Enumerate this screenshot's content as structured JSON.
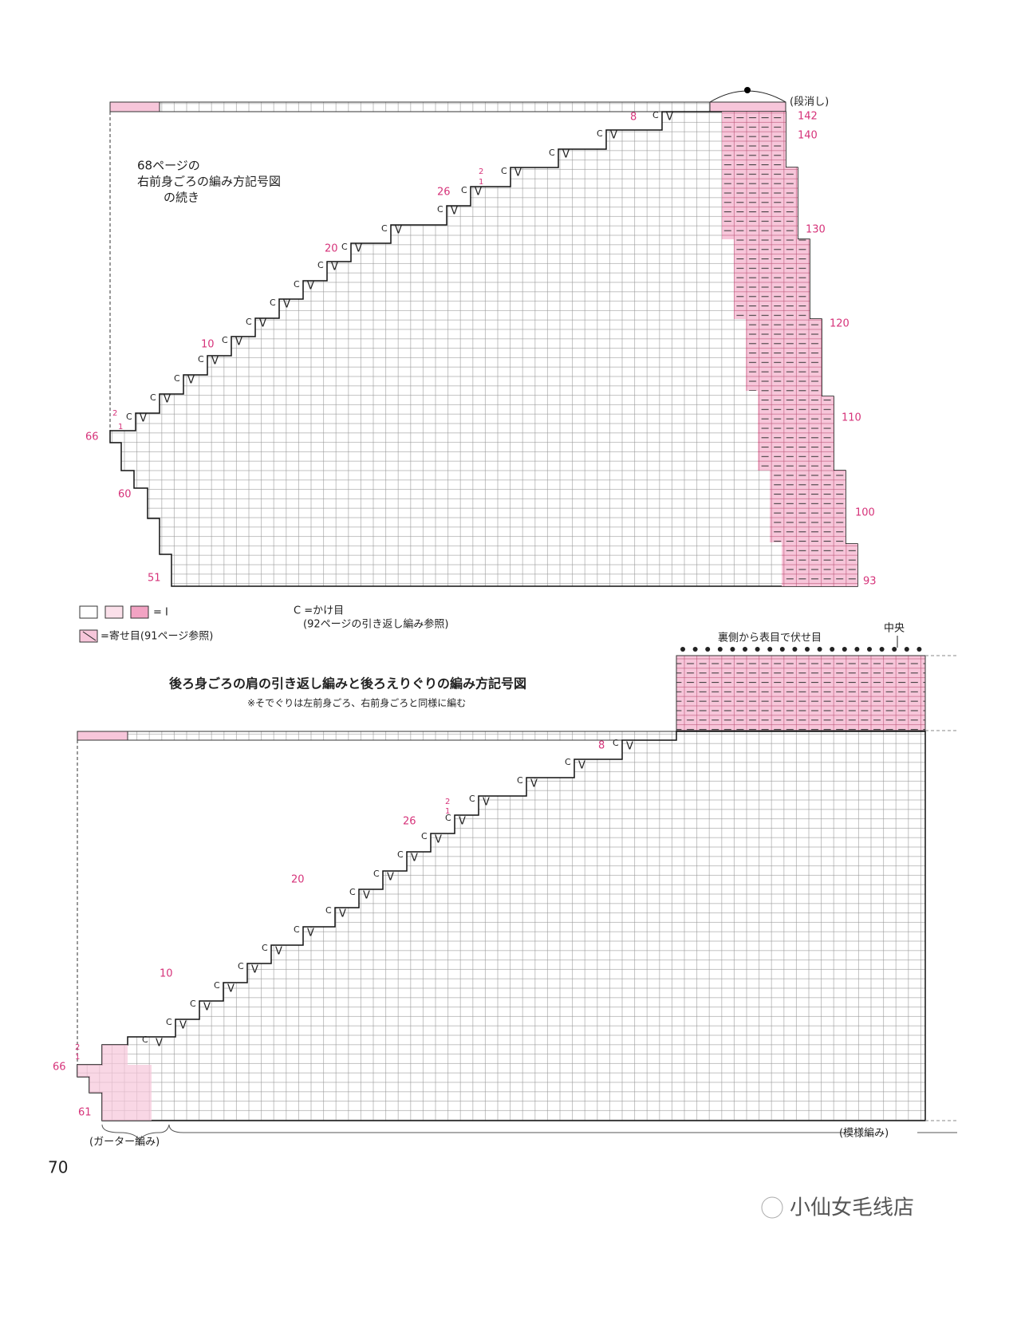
{
  "top_chart": {
    "note": [
      "68ページの",
      "右前身ごろの編み方記号図",
      "の続き"
    ],
    "right_labels": [
      "(段消し)",
      "142",
      "140",
      "130",
      "120",
      "110",
      "100",
      "93"
    ],
    "left_labels": [
      "8",
      "2",
      "1",
      "26",
      "20",
      "10",
      "2",
      "1",
      "66",
      "60",
      "51"
    ]
  },
  "symbols": {
    "yarn_over": "C",
    "slip": "V"
  },
  "legend": {
    "plain": "= I",
    "decrease": "=寄せ目(91ページ参照)",
    "yarn_over": "C =かけ目",
    "yarn_over_note": "(92ページの引き返し編み参照)"
  },
  "bottom_chart": {
    "title": "後ろ身ごろの肩の引き返し編みと後ろえりぐりの編み方記号図",
    "note": "※そでぐりは左前身ごろ、右前身ごろと同様に編む",
    "bind_off": "裏側から表目で伏せ目",
    "center": "中央",
    "left_labels": [
      "8",
      "2",
      "1",
      "26",
      "20",
      "10",
      "2",
      "1",
      "66",
      "61"
    ],
    "garter": "(ガーター編み)",
    "pattern": "(模様編み)"
  },
  "page_number": "70",
  "watermark": "小仙女毛线店"
}
